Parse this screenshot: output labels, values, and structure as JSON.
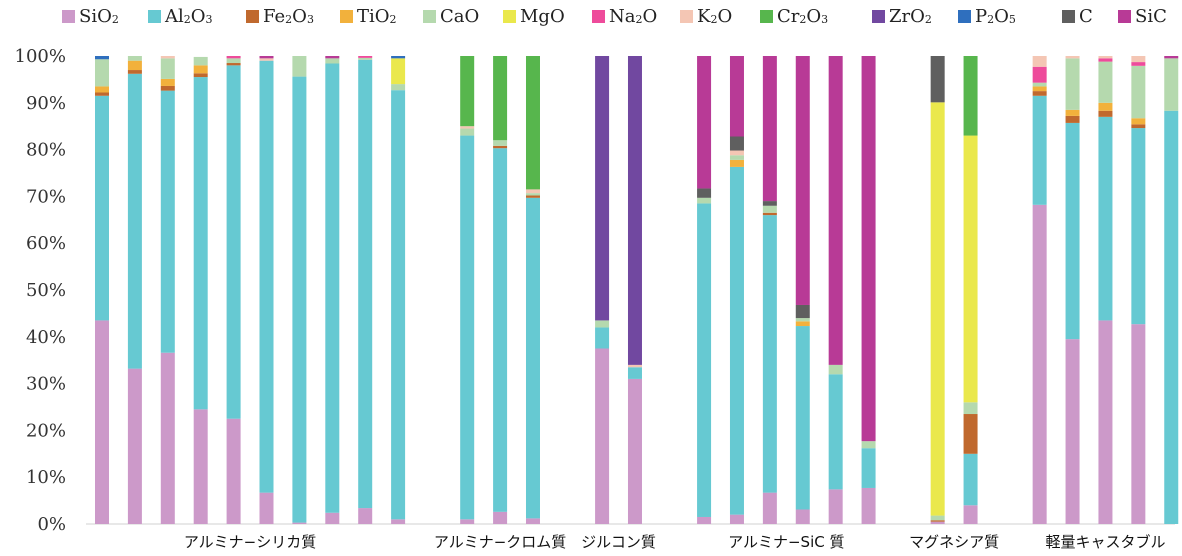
{
  "chart_data": {
    "type": "stacked-bar-100",
    "title": "",
    "xlabel": "",
    "ylabel": "",
    "ylim": [
      0,
      100
    ],
    "yticks": [
      "0%",
      "10%",
      "20%",
      "30%",
      "40%",
      "50%",
      "60%",
      "70%",
      "80%",
      "90%",
      "100%"
    ],
    "legend_position": "top",
    "grid": false,
    "components": [
      {
        "key": "SiO2",
        "label": "SiO",
        "sub": "2",
        "color": "#cc99c9"
      },
      {
        "key": "Al2O3",
        "label": "Al",
        "sub": "2",
        "label2": "O",
        "sub2": "3",
        "color": "#66c9d2"
      },
      {
        "key": "Fe2O3",
        "label": "Fe",
        "sub": "2",
        "label2": "O",
        "sub2": "3",
        "color": "#c0692e"
      },
      {
        "key": "TiO2",
        "label": "TiO",
        "sub": "2",
        "color": "#f2b13c"
      },
      {
        "key": "CaO",
        "label": "CaO",
        "sub": "",
        "color": "#b5d9ae"
      },
      {
        "key": "MgO",
        "label": "MgO",
        "sub": "",
        "color": "#eae84c"
      },
      {
        "key": "Na2O",
        "label": "Na",
        "sub": "2",
        "label2": "O",
        "sub2": "",
        "color": "#ee4b9b"
      },
      {
        "key": "K2O",
        "label": "K",
        "sub": "2",
        "label2": "O",
        "sub2": "",
        "color": "#f4c6b4"
      },
      {
        "key": "Cr2O3",
        "label": "Cr",
        "sub": "2",
        "label2": "O",
        "sub2": "3",
        "color": "#57b64d"
      },
      {
        "key": "ZrO2",
        "label": "ZrO",
        "sub": "2",
        "color": "#7148a0"
      },
      {
        "key": "P2O5",
        "label": "P",
        "sub": "2",
        "label2": "O",
        "sub2": "5",
        "color": "#2f6fbe"
      },
      {
        "key": "C",
        "label": "C",
        "sub": "",
        "color": "#5f5f5f"
      },
      {
        "key": "SiC",
        "label": "SiC",
        "sub": "",
        "color": "#b83a96"
      }
    ],
    "categories": [
      {
        "label": "アルミナ−シリカ質",
        "bars": [
          {
            "SiO2": 43.5,
            "Al2O3": 48,
            "Fe2O3": 0.7,
            "TiO2": 1.3,
            "CaO": 5.8,
            "P2O5": 0.7
          },
          {
            "SiO2": 33.2,
            "Al2O3": 63,
            "Fe2O3": 0.8,
            "TiO2": 2,
            "CaO": 1
          },
          {
            "SiO2": 36.6,
            "Al2O3": 56,
            "Fe2O3": 1,
            "TiO2": 1.5,
            "CaO": 4.4,
            "K2O": 0.5
          },
          {
            "SiO2": 24.5,
            "Al2O3": 71,
            "Fe2O3": 0.8,
            "TiO2": 1.7,
            "CaO": 1.8
          },
          {
            "SiO2": 22.5,
            "Al2O3": 75.5,
            "Fe2O3": 0.5,
            "CaO": 1,
            "Na2O": 0.5
          },
          {
            "SiO2": 6.7,
            "Al2O3": 92.3,
            "K2O": 0.5,
            "SiC": 0.5
          },
          {
            "SiO2": 0.3,
            "Al2O3": 95.3,
            "CaO": 4.4
          },
          {
            "SiO2": 2.4,
            "Al2O3": 96,
            "CaO": 1.1,
            "SiC": 0.5
          },
          {
            "SiO2": 3.4,
            "Al2O3": 95.8,
            "Na2O": 0.4,
            "CaO": 0.4
          },
          {
            "SiO2": 1,
            "Al2O3": 91.7,
            "CaO": 1.3,
            "MgO": 5.5,
            "P2O5": 0.5
          }
        ]
      },
      {
        "label": "アルミナ−クロム質",
        "bars": [
          {
            "SiO2": 1,
            "Al2O3": 82,
            "CaO": 1.5,
            "K2O": 0.5,
            "Cr2O3": 15
          },
          {
            "SiO2": 2.6,
            "Al2O3": 77.7,
            "CaO": 1.2,
            "Fe2O3": 0.5,
            "Cr2O3": 18
          },
          {
            "SiO2": 1.2,
            "Al2O3": 68.5,
            "K2O": 0.8,
            "Fe2O3": 0.5,
            "CaO": 0.5,
            "Cr2O3": 28.5
          }
        ]
      },
      {
        "label": "ジルコン質",
        "bars": [
          {
            "SiO2": 37.5,
            "Al2O3": 4.5,
            "CaO": 1.5,
            "ZrO2": 56.5
          },
          {
            "SiO2": 31,
            "Al2O3": 2.5,
            "K2O": 0.5,
            "ZrO2": 66
          }
        ]
      },
      {
        "label": "アルミナ−SiC 質",
        "bars": [
          {
            "SiO2": 1.5,
            "Al2O3": 67,
            "CaO": 1.2,
            "C": 2,
            "SiC": 28.3
          },
          {
            "SiO2": 2,
            "Al2O3": 74.3,
            "TiO2": 1.5,
            "CaO": 1,
            "K2O": 1,
            "C": 3,
            "SiC": 17.2
          },
          {
            "SiO2": 6.7,
            "Al2O3": 59.3,
            "Fe2O3": 0.5,
            "CaO": 1.5,
            "C": 1,
            "SiC": 31
          },
          {
            "SiO2": 3.1,
            "Al2O3": 39.2,
            "TiO2": 1,
            "CaO": 0.7,
            "C": 2.8,
            "SiC": 53.2
          },
          {
            "SiO2": 7.4,
            "Al2O3": 24.6,
            "CaO": 2,
            "SiC": 66
          },
          {
            "SiO2": 7.7,
            "Al2O3": 8.5,
            "CaO": 1.5,
            "SiC": 82.3
          }
        ]
      },
      {
        "label": "マグネシア質",
        "bars": [
          {
            "SiO2": 0.5,
            "Fe2O3": 0.3,
            "CaO": 1,
            "MgO": 88.3,
            "C": 9.9
          },
          {
            "SiO2": 4,
            "Al2O3": 11,
            "Fe2O3": 8.5,
            "CaO": 2.5,
            "MgO": 57,
            "Cr2O3": 17
          }
        ]
      },
      {
        "label": "軽量キャスタブル",
        "bars": [
          {
            "SiO2": 68.2,
            "Al2O3": 23.3,
            "Fe2O3": 1,
            "TiO2": 1,
            "CaO": 0.8,
            "Na2O": 3.4,
            "K2O": 2.3
          },
          {
            "SiO2": 39.5,
            "Al2O3": 46.2,
            "Fe2O3": 1.5,
            "TiO2": 1.3,
            "CaO": 11,
            "K2O": 0.5
          },
          {
            "SiO2": 43.5,
            "Al2O3": 43.5,
            "Fe2O3": 1.3,
            "TiO2": 1.7,
            "CaO": 8.8,
            "Na2O": 0.7,
            "K2O": 0.5
          },
          {
            "SiO2": 42.7,
            "Al2O3": 41.9,
            "Fe2O3": 0.8,
            "TiO2": 1.3,
            "CaO": 11.2,
            "Na2O": 0.8,
            "K2O": 1.3
          },
          {
            "Al2O3": 88.3,
            "CaO": 11.2,
            "SiC": 0.5
          }
        ]
      }
    ]
  }
}
